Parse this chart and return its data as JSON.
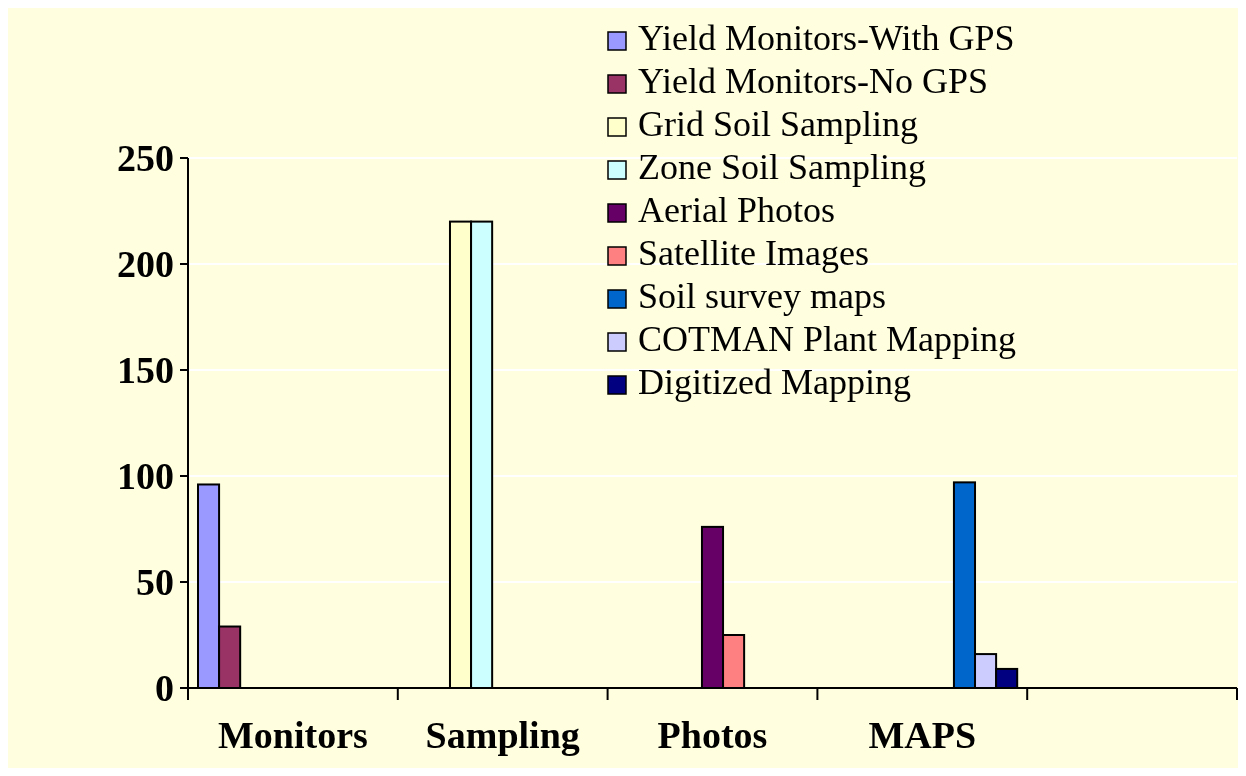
{
  "chart_data": {
    "type": "bar",
    "categories": [
      "Monitors",
      "Sampling",
      "Photos",
      "MAPS",
      null
    ],
    "series": [
      {
        "name": "Yield Monitors-With GPS",
        "color": "#9999ff",
        "values": [
          96,
          null,
          null,
          null,
          null
        ]
      },
      {
        "name": "Yield Monitors-No GPS",
        "color": "#993366",
        "values": [
          29,
          null,
          null,
          null,
          null
        ]
      },
      {
        "name": "Grid Soil Sampling",
        "color": "#ffffcc",
        "values": [
          null,
          220,
          null,
          null,
          null
        ]
      },
      {
        "name": "Zone Soil Sampling",
        "color": "#ccffff",
        "values": [
          null,
          220,
          null,
          null,
          null
        ]
      },
      {
        "name": "Aerial Photos",
        "color": "#660066",
        "values": [
          null,
          null,
          76,
          null,
          null
        ]
      },
      {
        "name": "Satellite Images",
        "color": "#ff8080",
        "values": [
          null,
          null,
          25,
          null,
          null
        ]
      },
      {
        "name": "Soil survey maps",
        "color": "#0066cc",
        "values": [
          null,
          null,
          null,
          97,
          null
        ]
      },
      {
        "name": "COTMAN Plant Mapping",
        "color": "#ccccff",
        "values": [
          null,
          null,
          null,
          16,
          null
        ]
      },
      {
        "name": "Digitized Mapping",
        "color": "#000080",
        "values": [
          null,
          null,
          null,
          9,
          null
        ]
      }
    ],
    "ylim": [
      0,
      250
    ],
    "yticks": [
      0,
      50,
      100,
      150,
      200,
      250
    ],
    "grid": "y",
    "legend": "top right"
  }
}
